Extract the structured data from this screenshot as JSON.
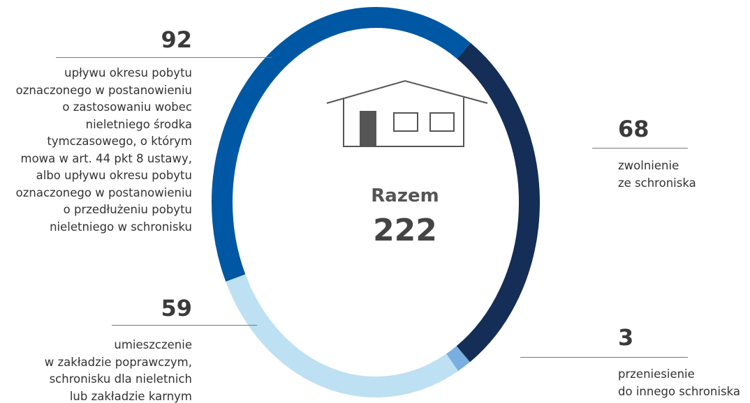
{
  "chart_data": {
    "type": "donut",
    "categories": [
      "zwolnienie\nze schroniska",
      "przeniesienie\ndo innego schroniska",
      "umieszczenie\nw zakładzie poprawczym,\nschronisku dla nieletnich\nlub zakładzie karnym",
      "upływu okresu pobytu\noznaczonego w postanowieniu\no zastosowaniu wobec\nnieletniego środka\ntymczasowego, o którym\nmowa w art. 44 pkt 8 ustawy,\nalbo upływu okresu pobytu\noznaczonego w postanowieniu\no przedłużeniu pobytu\nnieletniego w schronisku"
    ],
    "values": [
      68,
      3,
      59,
      92
    ],
    "colors": [
      "#152e57",
      "#7aaee0",
      "#bde0f3",
      "#0057a3"
    ],
    "total_label": "Razem",
    "total": 222
  }
}
